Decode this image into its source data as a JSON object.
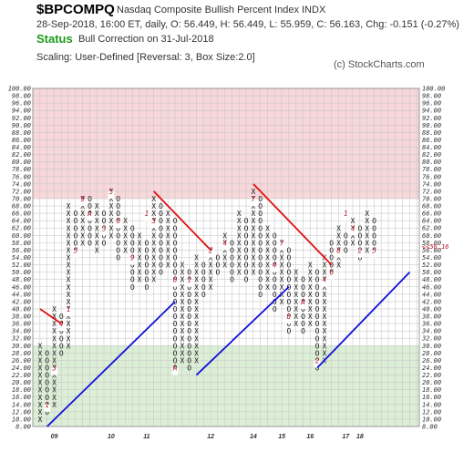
{
  "header": {
    "symbol": "$BPCOMPQ",
    "name": "Nasdaq Composite Bullish Percent Index  INDX",
    "quote": "28-Sep-2018, 16:00 ET, daily, O: 56.449, H: 56.449, L: 55.959, C: 56.163, Chg: -0.151 (-0.27%)",
    "status_label": "Status",
    "status_text": "Bull Correction on 31-Jul-2018",
    "scaling": "Scaling: User-Defined [Reversal: 3, Box Size:2.0]",
    "copyright": "(c) StockCharts.com"
  },
  "chart_data": {
    "type": "point-and-figure",
    "box_size": 2,
    "reversal": 3,
    "y_range": [
      8,
      100
    ],
    "y_tick_labels": [
      "100.00",
      "98.00",
      "96.00",
      "94.00",
      "92.00",
      "90.00",
      "88.00",
      "86.00",
      "84.00",
      "82.00",
      "80.00",
      "78.00",
      "76.00",
      "74.00",
      "72.00",
      "70.00",
      "68.00",
      "66.00",
      "64.00",
      "62.00",
      "60.00",
      "58.00",
      "56.00",
      "54.00",
      "52.00",
      "50.00",
      "48.00",
      "46.00",
      "44.00",
      "42.00",
      "40.00",
      "38.00",
      "36.00",
      "34.00",
      "32.00",
      "30.00",
      "28.00",
      "26.00",
      "24.00",
      "22.00",
      "20.00",
      "18.00",
      "16.00",
      "14.00",
      "12.00",
      "10.00",
      "8.00"
    ],
    "x_year_labels": [
      {
        "label": "09",
        "col": 2
      },
      {
        "label": "10",
        "col": 10
      },
      {
        "label": "11",
        "col": 15
      },
      {
        "label": "12",
        "col": 24
      },
      {
        "label": "14",
        "col": 30
      },
      {
        "label": "15",
        "col": 34
      },
      {
        "label": "16",
        "col": 38
      },
      {
        "label": "17",
        "col": 43
      },
      {
        "label": "18",
        "col": 45
      }
    ],
    "zones": {
      "overbought_above": 70,
      "oversold_below": 30
    },
    "current_value_label": "<<56.16",
    "current_value": 56.16,
    "columns": [
      {
        "type": "X",
        "low": 10,
        "high": 30
      },
      {
        "type": "O",
        "low": 12,
        "high": 28
      },
      {
        "type": "X",
        "low": 14,
        "high": 40
      },
      {
        "type": "O",
        "low": 28,
        "high": 38
      },
      {
        "type": "X",
        "low": 30,
        "high": 68
      },
      {
        "type": "O",
        "low": 56,
        "high": 66
      },
      {
        "type": "X",
        "low": 58,
        "high": 70
      },
      {
        "type": "O",
        "low": 58,
        "high": 70
      },
      {
        "type": "X",
        "low": 56,
        "high": 68
      },
      {
        "type": "O",
        "low": 58,
        "high": 66
      },
      {
        "type": "X",
        "low": 60,
        "high": 72
      },
      {
        "type": "O",
        "low": 54,
        "high": 70
      },
      {
        "type": "X",
        "low": 56,
        "high": 64
      },
      {
        "type": "O",
        "low": 46,
        "high": 62
      },
      {
        "type": "X",
        "low": 48,
        "high": 60
      },
      {
        "type": "O",
        "low": 46,
        "high": 58
      },
      {
        "type": "X",
        "low": 48,
        "high": 70
      },
      {
        "type": "O",
        "low": 50,
        "high": 68
      },
      {
        "type": "X",
        "low": 52,
        "high": 66
      },
      {
        "type": "O",
        "low": 24,
        "high": 64
      },
      {
        "type": "X",
        "low": 26,
        "high": 52
      },
      {
        "type": "O",
        "low": 24,
        "high": 50
      },
      {
        "type": "X",
        "low": 26,
        "high": 54
      },
      {
        "type": "O",
        "low": 44,
        "high": 52
      },
      {
        "type": "X",
        "low": 46,
        "high": 56
      },
      {
        "type": "O",
        "low": 50,
        "high": 54
      },
      {
        "type": "X",
        "low": 52,
        "high": 60
      },
      {
        "type": "O",
        "low": 48,
        "high": 58
      },
      {
        "type": "X",
        "low": 50,
        "high": 66
      },
      {
        "type": "O",
        "low": 48,
        "high": 64
      },
      {
        "type": "X",
        "low": 50,
        "high": 72
      },
      {
        "type": "O",
        "low": 44,
        "high": 70
      },
      {
        "type": "X",
        "low": 46,
        "high": 62
      },
      {
        "type": "O",
        "low": 40,
        "high": 60
      },
      {
        "type": "X",
        "low": 42,
        "high": 58
      },
      {
        "type": "O",
        "low": 34,
        "high": 56
      },
      {
        "type": "X",
        "low": 36,
        "high": 50
      },
      {
        "type": "O",
        "low": 34,
        "high": 48
      },
      {
        "type": "X",
        "low": 36,
        "high": 52
      },
      {
        "type": "O",
        "low": 24,
        "high": 50
      },
      {
        "type": "X",
        "low": 26,
        "high": 54
      },
      {
        "type": "O",
        "low": 50,
        "high": 58
      },
      {
        "type": "X",
        "low": 52,
        "high": 62
      },
      {
        "type": "O",
        "low": 56,
        "high": 60
      },
      {
        "type": "X",
        "low": 58,
        "high": 64
      },
      {
        "type": "O",
        "low": 54,
        "high": 62
      },
      {
        "type": "X",
        "low": 56,
        "high": 66
      },
      {
        "type": "O",
        "low": 56,
        "high": 64
      }
    ],
    "month_markers": [
      {
        "col": 1,
        "value": 14,
        "label": "1"
      },
      {
        "col": 2,
        "value": 24,
        "label": "3"
      },
      {
        "col": 3,
        "value": 36,
        "label": "4"
      },
      {
        "col": 4,
        "value": 40,
        "label": "1"
      },
      {
        "col": 5,
        "value": 56,
        "label": "5"
      },
      {
        "col": 6,
        "value": 70,
        "label": "9"
      },
      {
        "col": 7,
        "value": 66,
        "label": "A"
      },
      {
        "col": 9,
        "value": 62,
        "label": "3"
      },
      {
        "col": 10,
        "value": 72,
        "label": "5"
      },
      {
        "col": 11,
        "value": 64,
        "label": "6"
      },
      {
        "col": 13,
        "value": 54,
        "label": "9"
      },
      {
        "col": 15,
        "value": 66,
        "label": "1"
      },
      {
        "col": 16,
        "value": 64,
        "label": "3"
      },
      {
        "col": 19,
        "value": 48,
        "label": "8"
      },
      {
        "col": 19,
        "value": 24,
        "label": "A"
      },
      {
        "col": 21,
        "value": 48,
        "label": "1"
      },
      {
        "col": 24,
        "value": 56,
        "label": "2"
      },
      {
        "col": 26,
        "value": 58,
        "label": "4"
      },
      {
        "col": 30,
        "value": 70,
        "label": "7"
      },
      {
        "col": 33,
        "value": 52,
        "label": "4"
      },
      {
        "col": 34,
        "value": 58,
        "label": "7"
      },
      {
        "col": 35,
        "value": 38,
        "label": "8"
      },
      {
        "col": 37,
        "value": 42,
        "label": "A"
      },
      {
        "col": 39,
        "value": 26,
        "label": "2"
      },
      {
        "col": 40,
        "value": 48,
        "label": "4"
      },
      {
        "col": 41,
        "value": 50,
        "label": "6"
      },
      {
        "col": 42,
        "value": 56,
        "label": "8"
      },
      {
        "col": 43,
        "value": 66,
        "label": "1"
      },
      {
        "col": 44,
        "value": 62,
        "label": "4"
      },
      {
        "col": 45,
        "value": 56,
        "label": "2"
      },
      {
        "col": 47,
        "value": 56,
        "label": "5"
      }
    ],
    "trendlines": [
      {
        "color": "red",
        "from": {
          "col": 0,
          "value": 40
        },
        "to": {
          "col": 3,
          "value": 36
        }
      },
      {
        "color": "blue",
        "from": {
          "col": 1,
          "value": 8
        },
        "to": {
          "col": 19,
          "value": 42
        }
      },
      {
        "color": "red",
        "from": {
          "col": 16,
          "value": 72
        },
        "to": {
          "col": 24,
          "value": 56
        }
      },
      {
        "color": "blue",
        "from": {
          "col": 22,
          "value": 22
        },
        "to": {
          "col": 35,
          "value": 46
        }
      },
      {
        "color": "red",
        "from": {
          "col": 30,
          "value": 74
        },
        "to": {
          "col": 41,
          "value": 52
        }
      },
      {
        "color": "blue",
        "from": {
          "col": 39,
          "value": 24
        },
        "to": {
          "col": 52,
          "value": 50
        }
      }
    ]
  }
}
